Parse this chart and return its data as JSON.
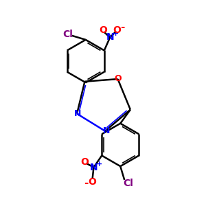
{
  "bg_color": "#ffffff",
  "bond_color": "#000000",
  "N_color": "#0000ff",
  "O_color": "#ff0000",
  "Cl_color": "#800080",
  "lw": 1.8,
  "lw_inner": 1.2,
  "figsize": [
    3.0,
    3.0
  ],
  "dpi": 100,
  "xlim": [
    0,
    10
  ],
  "ylim": [
    0,
    10
  ]
}
